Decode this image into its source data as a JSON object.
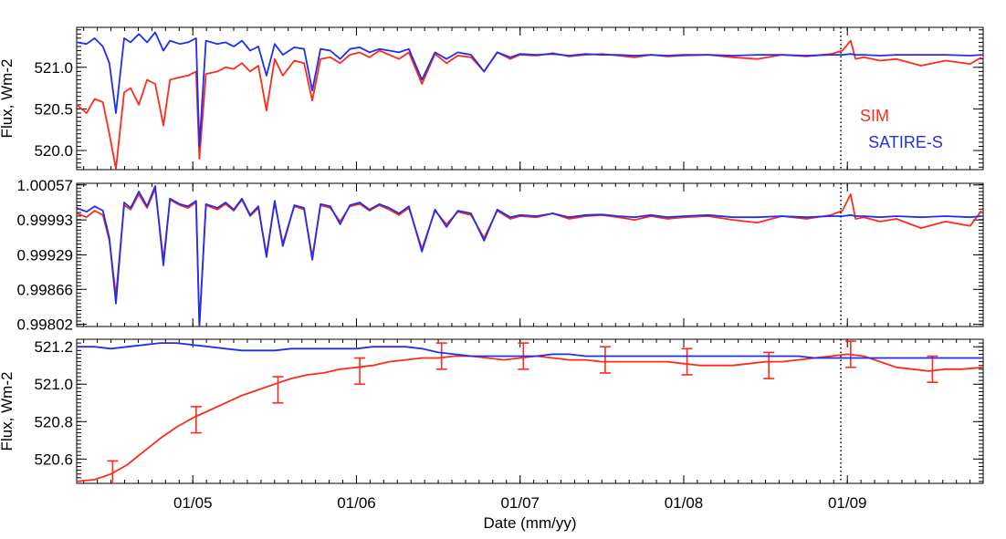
{
  "chart_data": [
    {
      "type": "line",
      "ylabel": "Flux, Wm-2",
      "ylim": [
        519.77,
        521.48
      ],
      "yticks": [
        "520.0",
        "520.5",
        "521.0"
      ],
      "ytick_values": [
        520.0,
        520.5,
        521.0
      ],
      "series": [
        {
          "name": "SIM",
          "color": "#ff2a1a",
          "x": [
            2004.29,
            2004.35,
            2004.4,
            2004.45,
            2004.49,
            2004.53,
            2004.58,
            2004.62,
            2004.67,
            2004.72,
            2004.77,
            2004.82,
            2004.86,
            2004.92,
            2004.97,
            2005.02,
            2005.04,
            2005.08,
            2005.15,
            2005.2,
            2005.25,
            2005.3,
            2005.35,
            2005.4,
            2005.45,
            2005.5,
            2005.55,
            2005.62,
            2005.68,
            2005.73,
            2005.78,
            2005.84,
            2005.9,
            2005.96,
            2006.02,
            2006.08,
            2006.14,
            2006.2,
            2006.26,
            2006.32,
            2006.4,
            2006.48,
            2006.55,
            2006.62,
            2006.7,
            2006.78,
            2006.86,
            2006.94,
            2007.0,
            2007.1,
            2007.2,
            2007.3,
            2007.4,
            2007.5,
            2007.6,
            2007.7,
            2007.8,
            2007.9,
            2008.0,
            2008.15,
            2008.3,
            2008.45,
            2008.6,
            2008.75,
            2008.9,
            2008.97,
            2009.02,
            2009.05,
            2009.1,
            2009.2,
            2009.3,
            2009.45,
            2009.6,
            2009.75,
            2009.82
          ],
          "values": [
            520.55,
            520.45,
            520.62,
            520.58,
            520.2,
            519.78,
            520.7,
            520.75,
            520.55,
            520.85,
            520.8,
            520.3,
            520.85,
            520.88,
            520.9,
            520.95,
            519.9,
            520.92,
            520.95,
            521.0,
            520.98,
            521.05,
            520.95,
            521.02,
            520.48,
            521.1,
            520.9,
            521.08,
            521.05,
            520.6,
            521.1,
            521.12,
            521.05,
            521.15,
            521.18,
            521.12,
            521.2,
            521.15,
            521.1,
            521.18,
            520.8,
            521.16,
            521.05,
            521.14,
            521.12,
            520.95,
            521.18,
            521.1,
            521.15,
            521.14,
            521.17,
            521.13,
            521.15,
            521.16,
            521.14,
            521.12,
            521.15,
            521.13,
            521.14,
            521.15,
            521.12,
            521.1,
            521.15,
            521.13,
            521.16,
            521.2,
            521.32,
            521.1,
            521.12,
            521.08,
            521.1,
            521.02,
            521.08,
            521.04,
            521.12
          ]
        },
        {
          "name": "SATIRE-S",
          "color": "#1f2ef2",
          "x": [
            2004.29,
            2004.35,
            2004.4,
            2004.45,
            2004.49,
            2004.53,
            2004.58,
            2004.62,
            2004.67,
            2004.72,
            2004.77,
            2004.82,
            2004.86,
            2004.92,
            2004.97,
            2005.02,
            2005.04,
            2005.08,
            2005.15,
            2005.2,
            2005.25,
            2005.3,
            2005.35,
            2005.4,
            2005.45,
            2005.5,
            2005.55,
            2005.62,
            2005.68,
            2005.73,
            2005.78,
            2005.84,
            2005.9,
            2005.96,
            2006.02,
            2006.08,
            2006.14,
            2006.2,
            2006.26,
            2006.32,
            2006.4,
            2006.48,
            2006.55,
            2006.62,
            2006.7,
            2006.78,
            2006.86,
            2006.94,
            2007.0,
            2007.1,
            2007.2,
            2007.3,
            2007.4,
            2007.5,
            2007.6,
            2007.7,
            2007.8,
            2007.9,
            2008.0,
            2008.15,
            2008.3,
            2008.45,
            2008.6,
            2008.75,
            2008.9,
            2008.97,
            2009.02,
            2009.05,
            2009.1,
            2009.2,
            2009.3,
            2009.45,
            2009.6,
            2009.75,
            2009.82
          ],
          "values": [
            521.3,
            521.28,
            521.35,
            521.25,
            521.05,
            520.45,
            521.35,
            521.3,
            521.4,
            521.3,
            521.42,
            521.2,
            521.32,
            521.28,
            521.3,
            521.35,
            520.05,
            521.32,
            521.28,
            521.3,
            521.25,
            521.32,
            521.2,
            521.25,
            520.9,
            521.28,
            521.15,
            521.24,
            521.22,
            520.72,
            521.22,
            521.2,
            521.1,
            521.22,
            521.24,
            521.18,
            521.22,
            521.2,
            521.18,
            521.22,
            520.85,
            521.18,
            521.1,
            521.18,
            521.15,
            520.95,
            521.18,
            521.12,
            521.16,
            521.15,
            521.16,
            521.14,
            521.16,
            521.15,
            521.15,
            521.14,
            521.15,
            521.14,
            521.15,
            521.15,
            521.14,
            521.15,
            521.15,
            521.14,
            521.15,
            521.15,
            521.16,
            521.15,
            521.15,
            521.14,
            521.15,
            521.15,
            521.15,
            521.14,
            521.15
          ]
        }
      ],
      "legend": [
        "SIM",
        "SATIRE-S"
      ],
      "legend_position": "right"
    },
    {
      "type": "line",
      "ylabel": "",
      "ylim": [
        0.99798,
        1.0006
      ],
      "yticks": [
        "1.00057",
        "0.99993",
        "0.99929",
        "0.99866",
        "0.99802"
      ],
      "ytick_values": [
        1.00057,
        0.99993,
        0.99929,
        0.99866,
        0.99802
      ],
      "series": [
        {
          "name": "SIM",
          "color": "#ff2a1a",
          "x": [
            2004.29,
            2004.35,
            2004.4,
            2004.45,
            2004.49,
            2004.53,
            2004.58,
            2004.62,
            2004.67,
            2004.72,
            2004.77,
            2004.82,
            2004.86,
            2004.92,
            2004.97,
            2005.02,
            2005.04,
            2005.08,
            2005.15,
            2005.2,
            2005.25,
            2005.3,
            2005.35,
            2005.4,
            2005.45,
            2005.5,
            2005.55,
            2005.62,
            2005.68,
            2005.73,
            2005.78,
            2005.84,
            2005.9,
            2005.96,
            2006.02,
            2006.08,
            2006.14,
            2006.2,
            2006.26,
            2006.32,
            2006.4,
            2006.48,
            2006.55,
            2006.62,
            2006.7,
            2006.78,
            2006.86,
            2006.94,
            2007.0,
            2007.1,
            2007.2,
            2007.3,
            2007.4,
            2007.5,
            2007.6,
            2007.7,
            2007.8,
            2007.9,
            2008.0,
            2008.15,
            2008.3,
            2008.45,
            2008.6,
            2008.75,
            2008.9,
            2008.97,
            2009.02,
            2009.05,
            2009.1,
            2009.2,
            2009.3,
            2009.45,
            2009.6,
            2009.75,
            2009.82
          ],
          "values": [
            1.00005,
            0.99998,
            1.0001,
            1.00002,
            0.99955,
            0.99855,
            1.0002,
            1.00012,
            1.0004,
            1.00015,
            1.0005,
            0.9992,
            1.0003,
            1.0002,
            1.00015,
            1.00025,
            0.998,
            1.0002,
            1.00012,
            1.00022,
            1.0001,
            1.0003,
            1.0,
            1.00015,
            0.9993,
            1.00025,
            0.9995,
            1.00018,
            1.00012,
            0.99925,
            1.0002,
            1.00015,
            0.9999,
            1.00018,
            1.00022,
            1.0001,
            1.0002,
            1.00012,
            1.00002,
            1.00015,
            0.9994,
            1.0001,
            0.99985,
            1.00008,
            1.00002,
            0.9996,
            1.0001,
            0.99995,
            1.0,
            0.99998,
            1.00005,
            0.99995,
            1.0,
            1.00002,
            0.99998,
            0.99993,
            1.0,
            0.99995,
            0.99998,
            1.0,
            0.99993,
            0.99988,
            1.0,
            0.99995,
            1.00002,
            1.0001,
            1.0004,
            0.99995,
            0.99998,
            0.9999,
            0.99995,
            0.99978,
            0.9999,
            0.99982,
            1.0001
          ]
        },
        {
          "name": "SATIRE-S",
          "color": "#1f2ef2",
          "x": [
            2004.29,
            2004.35,
            2004.4,
            2004.45,
            2004.49,
            2004.53,
            2004.58,
            2004.62,
            2004.67,
            2004.72,
            2004.77,
            2004.82,
            2004.86,
            2004.92,
            2004.97,
            2005.02,
            2005.04,
            2005.08,
            2005.15,
            2005.2,
            2005.25,
            2005.3,
            2005.35,
            2005.4,
            2005.45,
            2005.5,
            2005.55,
            2005.62,
            2005.68,
            2005.73,
            2005.78,
            2005.84,
            2005.9,
            2005.96,
            2006.02,
            2006.08,
            2006.14,
            2006.2,
            2006.26,
            2006.32,
            2006.4,
            2006.48,
            2006.55,
            2006.62,
            2006.7,
            2006.78,
            2006.86,
            2006.94,
            2007.0,
            2007.1,
            2007.2,
            2007.3,
            2007.4,
            2007.5,
            2007.6,
            2007.7,
            2007.8,
            2007.9,
            2008.0,
            2008.15,
            2008.3,
            2008.45,
            2008.6,
            2008.75,
            2008.9,
            2008.97,
            2009.02,
            2009.05,
            2009.1,
            2009.2,
            2009.3,
            2009.45,
            2009.6,
            2009.75,
            2009.82
          ],
          "values": [
            1.00015,
            1.00008,
            1.00018,
            1.0001,
            0.9996,
            0.9984,
            1.00025,
            1.00015,
            1.00045,
            1.00018,
            1.00055,
            0.9991,
            1.00032,
            1.00022,
            1.00018,
            1.00028,
            0.99798,
            1.00022,
            1.00015,
            1.00025,
            1.00012,
            1.00032,
            1.00002,
            1.00018,
            0.99925,
            1.00028,
            0.99945,
            1.0002,
            1.00015,
            0.9992,
            1.00022,
            1.00018,
            0.99985,
            1.0002,
            1.00025,
            1.00012,
            1.00022,
            1.00015,
            1.00005,
            1.00018,
            0.99935,
            1.00012,
            0.9998,
            1.0001,
            1.00005,
            0.99955,
            1.00012,
            0.99998,
            1.00002,
            1.0,
            1.00005,
            0.99998,
            1.00002,
            1.00003,
            1.0,
            0.99998,
            1.00002,
            0.99998,
            1.0,
            1.00002,
            0.99998,
            0.99998,
            1.0,
            0.99998,
            1.0,
            1.0,
            1.00002,
            1.0,
            1.0,
            0.99998,
            1.0,
            0.99998,
            1.0,
            0.99998,
            1.0
          ]
        }
      ]
    },
    {
      "type": "line",
      "ylabel": "Flux, Wm-2",
      "ylim": [
        520.47,
        521.24
      ],
      "yticks": [
        "520.6",
        "520.8",
        "521.0",
        "521.2"
      ],
      "ytick_values": [
        520.6,
        520.8,
        521.0,
        521.2
      ],
      "xlabel": "Date (mm/yy)",
      "xticks": [
        "01/05",
        "01/06",
        "01/07",
        "01/08",
        "01/09"
      ],
      "xtick_values": [
        2005.0,
        2006.0,
        2007.0,
        2008.0,
        2009.0
      ],
      "xlim": [
        2004.29,
        2009.83
      ],
      "marker_line_x": 2008.96,
      "series": [
        {
          "name": "SIM",
          "color": "#ff2a1a",
          "x": [
            2004.29,
            2004.4,
            2004.5,
            2004.6,
            2004.7,
            2004.8,
            2004.9,
            2005.0,
            2005.1,
            2005.2,
            2005.3,
            2005.4,
            2005.5,
            2005.6,
            2005.7,
            2005.8,
            2005.9,
            2006.0,
            2006.1,
            2006.2,
            2006.3,
            2006.4,
            2006.5,
            2006.6,
            2006.7,
            2006.8,
            2006.9,
            2007.0,
            2007.1,
            2007.2,
            2007.3,
            2007.4,
            2007.5,
            2007.6,
            2007.7,
            2007.8,
            2007.9,
            2008.0,
            2008.1,
            2008.2,
            2008.3,
            2008.4,
            2008.5,
            2008.6,
            2008.7,
            2008.8,
            2008.9,
            2009.0,
            2009.1,
            2009.2,
            2009.3,
            2009.4,
            2009.5,
            2009.6,
            2009.7,
            2009.83
          ],
          "values": [
            520.48,
            520.49,
            520.52,
            520.57,
            520.64,
            520.71,
            520.77,
            520.82,
            520.86,
            520.9,
            520.94,
            520.97,
            521.0,
            521.03,
            521.05,
            521.06,
            521.08,
            521.09,
            521.1,
            521.12,
            521.13,
            521.14,
            521.14,
            521.15,
            521.15,
            521.14,
            521.13,
            521.14,
            521.15,
            521.14,
            521.13,
            521.13,
            521.12,
            521.12,
            521.12,
            521.12,
            521.12,
            521.11,
            521.1,
            521.1,
            521.1,
            521.11,
            521.12,
            521.12,
            521.13,
            521.14,
            521.15,
            521.16,
            521.15,
            521.12,
            521.09,
            521.08,
            521.07,
            521.08,
            521.08,
            521.09
          ],
          "error_x": [
            2004.51,
            2005.02,
            2005.52,
            2006.02,
            2006.52,
            2007.02,
            2007.52,
            2008.02,
            2008.52,
            2009.02,
            2009.52
          ],
          "error_y": [
            520.52,
            520.81,
            520.97,
            521.07,
            521.15,
            521.15,
            521.13,
            521.12,
            521.1,
            521.16,
            521.08
          ],
          "error_bar": [
            0.07,
            0.07,
            0.07,
            0.07,
            0.07,
            0.07,
            0.07,
            0.07,
            0.07,
            0.07,
            0.07
          ]
        },
        {
          "name": "SATIRE-S",
          "color": "#1f2ef2",
          "x": [
            2004.29,
            2004.4,
            2004.5,
            2004.6,
            2004.7,
            2004.8,
            2004.9,
            2005.0,
            2005.1,
            2005.2,
            2005.3,
            2005.4,
            2005.5,
            2005.6,
            2005.7,
            2005.8,
            2005.9,
            2006.0,
            2006.1,
            2006.2,
            2006.3,
            2006.4,
            2006.5,
            2006.6,
            2006.7,
            2006.8,
            2006.9,
            2007.0,
            2007.1,
            2007.2,
            2007.3,
            2007.4,
            2007.5,
            2007.6,
            2007.7,
            2007.8,
            2007.9,
            2008.0,
            2008.1,
            2008.2,
            2008.3,
            2008.4,
            2008.5,
            2008.6,
            2008.7,
            2008.8,
            2008.9,
            2009.0,
            2009.1,
            2009.2,
            2009.3,
            2009.4,
            2009.5,
            2009.6,
            2009.7,
            2009.83
          ],
          "values": [
            521.2,
            521.2,
            521.19,
            521.2,
            521.21,
            521.22,
            521.22,
            521.21,
            521.2,
            521.19,
            521.18,
            521.18,
            521.18,
            521.19,
            521.19,
            521.19,
            521.19,
            521.19,
            521.2,
            521.2,
            521.2,
            521.19,
            521.17,
            521.16,
            521.15,
            521.15,
            521.15,
            521.15,
            521.15,
            521.16,
            521.16,
            521.15,
            521.15,
            521.15,
            521.15,
            521.15,
            521.15,
            521.15,
            521.15,
            521.15,
            521.15,
            521.15,
            521.15,
            521.15,
            521.15,
            521.14,
            521.14,
            521.14,
            521.14,
            521.14,
            521.14,
            521.14,
            521.14,
            521.14,
            521.14,
            521.14
          ]
        }
      ]
    }
  ]
}
